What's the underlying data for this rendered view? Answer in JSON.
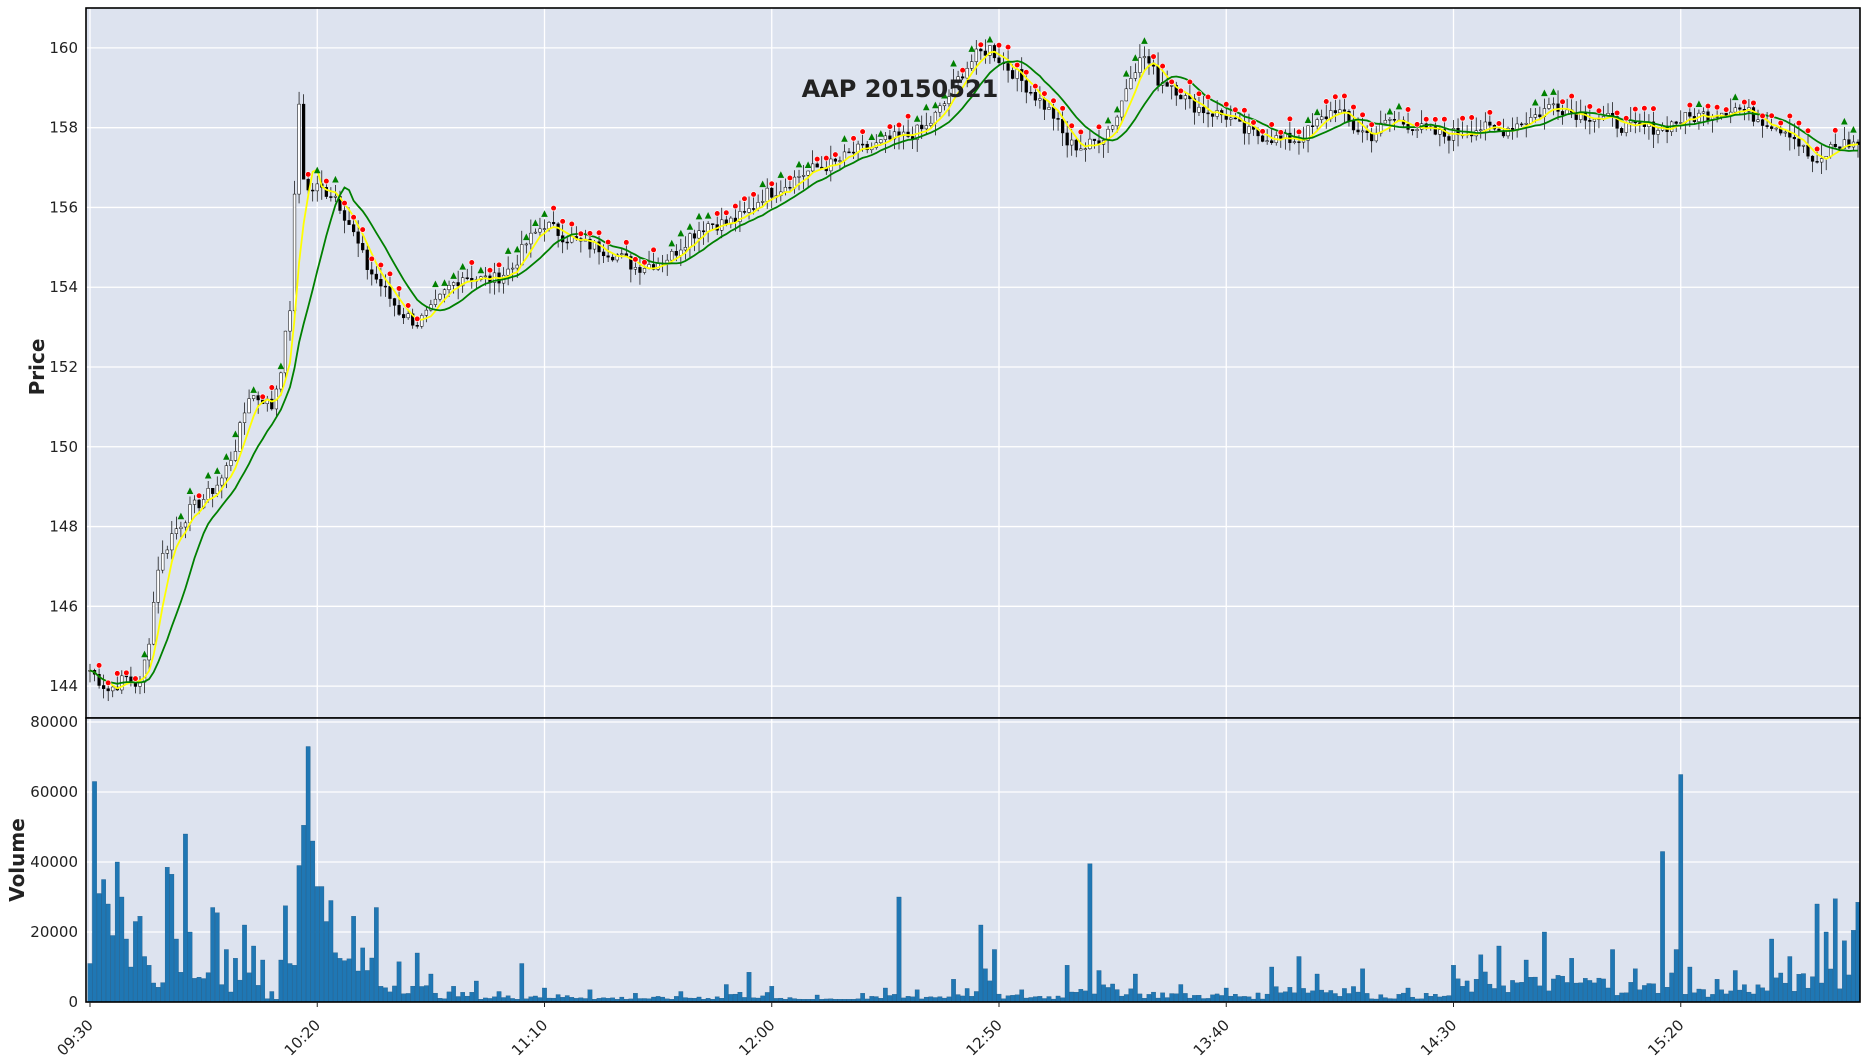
{
  "chart_data": [
    {
      "type": "candlestick",
      "title": "AAP 20150521",
      "ylabel": "Price",
      "ylim": [
        143.2,
        161.0
      ],
      "y_ticks": [
        144,
        146,
        148,
        150,
        152,
        154,
        156,
        158,
        160
      ],
      "x_tick_labels": [
        "09:30",
        "10:20",
        "11:10",
        "12:00",
        "12:50",
        "13:40",
        "14:30",
        "15:20"
      ],
      "x_range_minutes": [
        "09:30",
        "15:59"
      ],
      "grid": true,
      "series": [
        {
          "kind": "ohlc",
          "color_up": "#ffffff",
          "color_down": "#000000"
        },
        {
          "kind": "line",
          "color": "#ffff00"
        },
        {
          "kind": "line",
          "color": "#008000"
        },
        {
          "kind": "marker",
          "marker": "circle",
          "color": "#ff0000"
        },
        {
          "kind": "marker",
          "marker": "arrow-up",
          "color": "#008000"
        }
      ],
      "close_path": [
        [
          "09:30",
          144.4
        ],
        [
          "09:34",
          143.9
        ],
        [
          "09:38",
          144.2
        ],
        [
          "09:41",
          144.0
        ],
        [
          "09:43",
          145.2
        ],
        [
          "09:45",
          147.0
        ],
        [
          "09:48",
          147.8
        ],
        [
          "09:52",
          148.4
        ],
        [
          "09:56",
          148.8
        ],
        [
          "09:59",
          149.2
        ],
        [
          "10:02",
          150.0
        ],
        [
          "10:05",
          151.3
        ],
        [
          "10:08",
          151.2
        ],
        [
          "10:10",
          151.0
        ],
        [
          "10:12",
          152.0
        ],
        [
          "10:14",
          153.5
        ],
        [
          "10:15",
          156.2
        ],
        [
          "10:16",
          158.6
        ],
        [
          "10:17",
          156.8
        ],
        [
          "10:18",
          156.4
        ],
        [
          "10:20",
          156.5
        ],
        [
          "10:24",
          156.3
        ],
        [
          "10:27",
          155.6
        ],
        [
          "10:31",
          154.5
        ],
        [
          "10:35",
          153.9
        ],
        [
          "10:38",
          153.4
        ],
        [
          "10:42",
          153.1
        ],
        [
          "10:45",
          153.4
        ],
        [
          "10:49",
          154.0
        ],
        [
          "10:52",
          154.3
        ],
        [
          "10:56",
          154.2
        ],
        [
          "10:59",
          154.2
        ],
        [
          "11:03",
          154.5
        ],
        [
          "11:06",
          155.1
        ],
        [
          "11:10",
          155.6
        ],
        [
          "11:14",
          155.3
        ],
        [
          "11:18",
          155.1
        ],
        [
          "11:22",
          155.0
        ],
        [
          "11:26",
          154.8
        ],
        [
          "11:30",
          154.5
        ],
        [
          "11:34",
          154.6
        ],
        [
          "11:38",
          154.8
        ],
        [
          "11:42",
          155.3
        ],
        [
          "11:46",
          155.6
        ],
        [
          "11:50",
          155.6
        ],
        [
          "11:54",
          155.8
        ],
        [
          "11:58",
          156.3
        ],
        [
          "12:02",
          156.5
        ],
        [
          "12:06",
          156.8
        ],
        [
          "12:10",
          157.0
        ],
        [
          "12:14",
          157.1
        ],
        [
          "12:18",
          157.4
        ],
        [
          "12:22",
          157.5
        ],
        [
          "12:26",
          157.7
        ],
        [
          "12:30",
          157.8
        ],
        [
          "12:34",
          158.0
        ],
        [
          "12:38",
          158.6
        ],
        [
          "12:42",
          159.4
        ],
        [
          "12:45",
          159.8
        ],
        [
          "12:48",
          160.0
        ],
        [
          "12:51",
          159.6
        ],
        [
          "12:54",
          159.3
        ],
        [
          "12:58",
          158.8
        ],
        [
          "13:02",
          158.3
        ],
        [
          "13:05",
          157.6
        ],
        [
          "13:09",
          157.5
        ],
        [
          "13:13",
          157.8
        ],
        [
          "13:16",
          158.3
        ],
        [
          "13:19",
          159.4
        ],
        [
          "13:22",
          159.8
        ],
        [
          "13:25",
          159.2
        ],
        [
          "13:28",
          159.1
        ],
        [
          "13:32",
          158.6
        ],
        [
          "13:36",
          158.4
        ],
        [
          "13:40",
          158.3
        ],
        [
          "13:44",
          157.9
        ],
        [
          "13:48",
          157.8
        ],
        [
          "13:52",
          157.7
        ],
        [
          "13:56",
          157.7
        ],
        [
          "14:00",
          158.1
        ],
        [
          "14:04",
          158.5
        ],
        [
          "14:08",
          158.0
        ],
        [
          "14:12",
          157.8
        ],
        [
          "14:16",
          158.2
        ],
        [
          "14:20",
          158.1
        ],
        [
          "14:24",
          157.9
        ],
        [
          "14:28",
          157.8
        ],
        [
          "14:32",
          157.9
        ],
        [
          "14:36",
          158.0
        ],
        [
          "14:40",
          157.9
        ],
        [
          "14:44",
          158.1
        ],
        [
          "14:48",
          158.3
        ],
        [
          "14:52",
          158.6
        ],
        [
          "14:56",
          158.4
        ],
        [
          "15:00",
          158.3
        ],
        [
          "15:04",
          158.2
        ],
        [
          "15:08",
          158.0
        ],
        [
          "15:12",
          158.0
        ],
        [
          "15:16",
          158.0
        ],
        [
          "15:20",
          158.2
        ],
        [
          "15:24",
          158.3
        ],
        [
          "15:28",
          158.4
        ],
        [
          "15:32",
          158.5
        ],
        [
          "15:36",
          158.3
        ],
        [
          "15:40",
          158.1
        ],
        [
          "15:44",
          157.9
        ],
        [
          "15:48",
          157.3
        ],
        [
          "15:50",
          157.0
        ],
        [
          "15:53",
          157.5
        ],
        [
          "15:56",
          157.6
        ],
        [
          "15:59",
          157.6
        ]
      ]
    },
    {
      "type": "bar",
      "ylabel": "Volume",
      "ylim": [
        0,
        80000
      ],
      "y_ticks": [
        0,
        20000,
        40000,
        60000,
        80000
      ],
      "color": "#1f77b4",
      "grid": true,
      "volume_points": [
        [
          "09:30",
          11000
        ],
        [
          "09:31",
          63000
        ],
        [
          "09:32",
          31000
        ],
        [
          "09:33",
          35000
        ],
        [
          "09:34",
          28000
        ],
        [
          "09:35",
          19000
        ],
        [
          "09:36",
          40000
        ],
        [
          "09:37",
          30000
        ],
        [
          "09:38",
          18000
        ],
        [
          "09:39",
          10000
        ],
        [
          "09:40",
          23000
        ],
        [
          "09:41",
          24500
        ],
        [
          "09:42",
          13000
        ],
        [
          "09:43",
          10500
        ],
        [
          "09:47",
          38500
        ],
        [
          "09:48",
          36500
        ],
        [
          "09:49",
          18000
        ],
        [
          "09:50",
          8500
        ],
        [
          "09:51",
          48000
        ],
        [
          "09:52",
          20000
        ],
        [
          "09:57",
          27000
        ],
        [
          "09:58",
          25500
        ],
        [
          "10:00",
          15000
        ],
        [
          "10:02",
          12500
        ],
        [
          "10:04",
          22000
        ],
        [
          "10:06",
          16000
        ],
        [
          "10:08",
          12000
        ],
        [
          "10:10",
          3000
        ],
        [
          "10:12",
          12000
        ],
        [
          "10:13",
          27500
        ],
        [
          "10:14",
          11000
        ],
        [
          "10:15",
          10500
        ],
        [
          "10:16",
          39000
        ],
        [
          "10:17",
          50500
        ],
        [
          "10:18",
          73000
        ],
        [
          "10:19",
          46000
        ],
        [
          "10:20",
          33000
        ],
        [
          "10:21",
          33000
        ],
        [
          "10:22",
          23000
        ],
        [
          "10:23",
          29000
        ],
        [
          "10:28",
          24500
        ],
        [
          "10:33",
          27000
        ],
        [
          "10:38",
          11500
        ],
        [
          "10:42",
          14000
        ],
        [
          "10:45",
          8000
        ],
        [
          "10:50",
          4500
        ],
        [
          "10:55",
          6000
        ],
        [
          "11:00",
          3000
        ],
        [
          "11:05",
          11000
        ],
        [
          "11:10",
          4000
        ],
        [
          "11:20",
          3500
        ],
        [
          "11:30",
          2500
        ],
        [
          "11:40",
          3000
        ],
        [
          "11:50",
          5000
        ],
        [
          "11:55",
          8500
        ],
        [
          "12:00",
          4500
        ],
        [
          "12:10",
          2000
        ],
        [
          "12:20",
          2500
        ],
        [
          "12:25",
          4000
        ],
        [
          "12:28",
          30000
        ],
        [
          "12:32",
          3500
        ],
        [
          "12:40",
          6500
        ],
        [
          "12:46",
          22000
        ],
        [
          "12:49",
          15000
        ],
        [
          "12:55",
          3500
        ],
        [
          "13:05",
          10500
        ],
        [
          "13:10",
          39500
        ],
        [
          "13:12",
          9000
        ],
        [
          "13:20",
          8000
        ],
        [
          "13:30",
          5000
        ],
        [
          "13:40",
          4000
        ],
        [
          "13:50",
          10000
        ],
        [
          "13:56",
          13000
        ],
        [
          "14:00",
          8000
        ],
        [
          "14:10",
          9500
        ],
        [
          "14:20",
          4000
        ],
        [
          "14:30",
          10500
        ],
        [
          "14:36",
          13500
        ],
        [
          "14:40",
          16000
        ],
        [
          "14:46",
          12000
        ],
        [
          "14:50",
          20000
        ],
        [
          "14:56",
          12500
        ],
        [
          "15:05",
          15000
        ],
        [
          "15:10",
          9500
        ],
        [
          "15:16",
          43000
        ],
        [
          "15:19",
          15000
        ],
        [
          "15:20",
          65000
        ],
        [
          "15:22",
          10000
        ],
        [
          "15:28",
          6500
        ],
        [
          "15:32",
          9000
        ],
        [
          "15:40",
          18000
        ],
        [
          "15:44",
          13000
        ],
        [
          "15:50",
          28000
        ],
        [
          "15:52",
          20000
        ],
        [
          "15:54",
          29500
        ],
        [
          "15:56",
          17500
        ],
        [
          "15:58",
          20500
        ],
        [
          "15:59",
          28500
        ]
      ]
    }
  ]
}
